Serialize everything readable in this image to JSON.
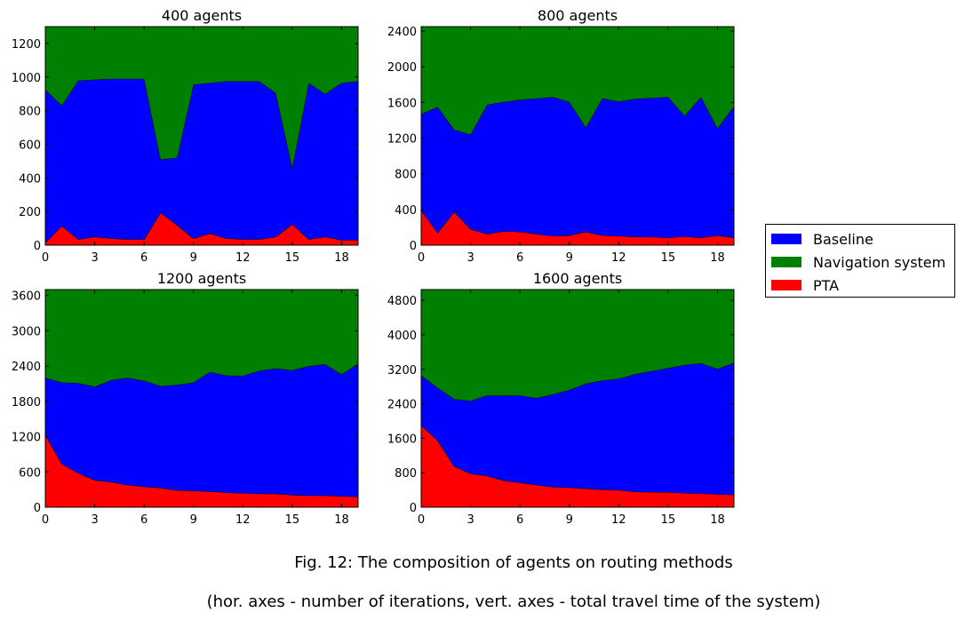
{
  "figure": {
    "caption": "Fig. 12: The composition of agents on routing methods",
    "subcaption": "(hor. axes - number of iterations, vert. axes - total travel time of the system)"
  },
  "legend": {
    "items": [
      {
        "label": "Baseline",
        "color": "#0000ff"
      },
      {
        "label": "Navigation system",
        "color": "#008000"
      },
      {
        "label": "PTA",
        "color": "#ff0000"
      }
    ]
  },
  "colors": {
    "pta": "#ff0000",
    "baseline": "#0000ff",
    "navigation": "#008000"
  },
  "chart_data": [
    {
      "type": "area",
      "stacked": true,
      "title": "400 agents",
      "xlabel": "",
      "ylabel": "",
      "x": [
        0,
        1,
        2,
        3,
        4,
        5,
        6,
        7,
        8,
        9,
        10,
        11,
        12,
        13,
        14,
        15,
        16,
        17,
        18,
        19
      ],
      "xlim": [
        0,
        19
      ],
      "ylim": [
        0,
        1300
      ],
      "xticks": [
        0,
        3,
        6,
        9,
        12,
        15,
        18
      ],
      "yticks": [
        0,
        200,
        400,
        600,
        800,
        1000,
        1200
      ],
      "series": [
        {
          "name": "PTA",
          "values": [
            15,
            115,
            35,
            50,
            40,
            35,
            35,
            195,
            120,
            40,
            70,
            40,
            35,
            35,
            50,
            125,
            35,
            50,
            30,
            30
          ]
        },
        {
          "name": "Baseline",
          "values": [
            910,
            715,
            945,
            935,
            950,
            955,
            955,
            315,
            400,
            915,
            895,
            935,
            940,
            940,
            855,
            335,
            930,
            850,
            935,
            945
          ]
        },
        {
          "name": "Navigation system",
          "values": [
            375,
            470,
            320,
            315,
            310,
            310,
            310,
            790,
            780,
            345,
            335,
            325,
            325,
            325,
            395,
            840,
            335,
            400,
            335,
            325
          ]
        }
      ]
    },
    {
      "type": "area",
      "stacked": true,
      "title": "800 agents",
      "xlabel": "",
      "ylabel": "",
      "x": [
        0,
        1,
        2,
        3,
        4,
        5,
        6,
        7,
        8,
        9,
        10,
        11,
        12,
        13,
        14,
        15,
        16,
        17,
        18,
        19
      ],
      "xlim": [
        0,
        19
      ],
      "ylim": [
        0,
        2450
      ],
      "xticks": [
        0,
        3,
        6,
        9,
        12,
        15,
        18
      ],
      "yticks": [
        0,
        400,
        800,
        1200,
        1600,
        2000,
        2400
      ],
      "series": [
        {
          "name": "PTA",
          "values": [
            390,
            140,
            375,
            180,
            125,
            155,
            150,
            125,
            105,
            110,
            150,
            110,
            105,
            95,
            95,
            85,
            100,
            85,
            110,
            85
          ]
        },
        {
          "name": "Baseline",
          "values": [
            1080,
            1410,
            920,
            1060,
            1450,
            1450,
            1480,
            1520,
            1555,
            1495,
            1170,
            1535,
            1505,
            1545,
            1555,
            1575,
            1350,
            1575,
            1200,
            1475
          ]
        },
        {
          "name": "Navigation system",
          "values": [
            980,
            900,
            1155,
            1210,
            875,
            845,
            820,
            805,
            790,
            845,
            1130,
            805,
            840,
            810,
            800,
            790,
            1000,
            790,
            1140,
            890
          ]
        }
      ]
    },
    {
      "type": "area",
      "stacked": true,
      "title": "1200 agents",
      "xlabel": "",
      "ylabel": "",
      "x": [
        0,
        1,
        2,
        3,
        4,
        5,
        6,
        7,
        8,
        9,
        10,
        11,
        12,
        13,
        14,
        15,
        16,
        17,
        18,
        19
      ],
      "xlim": [
        0,
        19
      ],
      "ylim": [
        0,
        3700
      ],
      "xticks": [
        0,
        3,
        6,
        9,
        12,
        15,
        18
      ],
      "yticks": [
        0,
        600,
        1200,
        1800,
        2400,
        3000,
        3600
      ],
      "series": [
        {
          "name": "PTA",
          "values": [
            1230,
            740,
            580,
            460,
            430,
            380,
            350,
            330,
            290,
            280,
            270,
            250,
            240,
            230,
            230,
            210,
            200,
            200,
            190,
            180
          ]
        },
        {
          "name": "Baseline",
          "values": [
            970,
            1380,
            1530,
            1590,
            1730,
            1820,
            1800,
            1730,
            1790,
            1840,
            2030,
            1990,
            1990,
            2090,
            2130,
            2120,
            2200,
            2230,
            2070,
            2260
          ]
        },
        {
          "name": "Navigation system",
          "values": [
            1500,
            1580,
            1590,
            1650,
            1540,
            1500,
            1550,
            1640,
            1620,
            1580,
            1400,
            1460,
            1470,
            1380,
            1340,
            1370,
            1300,
            1270,
            1440,
            1260
          ]
        }
      ]
    },
    {
      "type": "area",
      "stacked": true,
      "title": "1600 agents",
      "xlabel": "",
      "ylabel": "",
      "x": [
        0,
        1,
        2,
        3,
        4,
        5,
        6,
        7,
        8,
        9,
        10,
        11,
        12,
        13,
        14,
        15,
        16,
        17,
        18,
        19
      ],
      "xlim": [
        0,
        19
      ],
      "ylim": [
        0,
        5050
      ],
      "xticks": [
        0,
        3,
        6,
        9,
        12,
        15,
        18
      ],
      "yticks": [
        0,
        800,
        1600,
        2400,
        3200,
        4000,
        4800
      ],
      "series": [
        {
          "name": "PTA",
          "values": [
            1900,
            1550,
            950,
            780,
            730,
            620,
            570,
            520,
            470,
            460,
            430,
            410,
            400,
            360,
            350,
            350,
            330,
            320,
            300,
            290
          ]
        },
        {
          "name": "Baseline",
          "values": [
            1160,
            1220,
            1560,
            1690,
            1860,
            1970,
            2020,
            2010,
            2150,
            2260,
            2440,
            2530,
            2580,
            2730,
            2810,
            2880,
            2970,
            3020,
            2910,
            3060
          ]
        },
        {
          "name": "Navigation system",
          "values": [
            1990,
            2280,
            2540,
            2580,
            2460,
            2460,
            2460,
            2520,
            2430,
            2330,
            2180,
            2110,
            2070,
            1960,
            1890,
            1820,
            1750,
            1710,
            1840,
            1700
          ]
        }
      ]
    }
  ]
}
